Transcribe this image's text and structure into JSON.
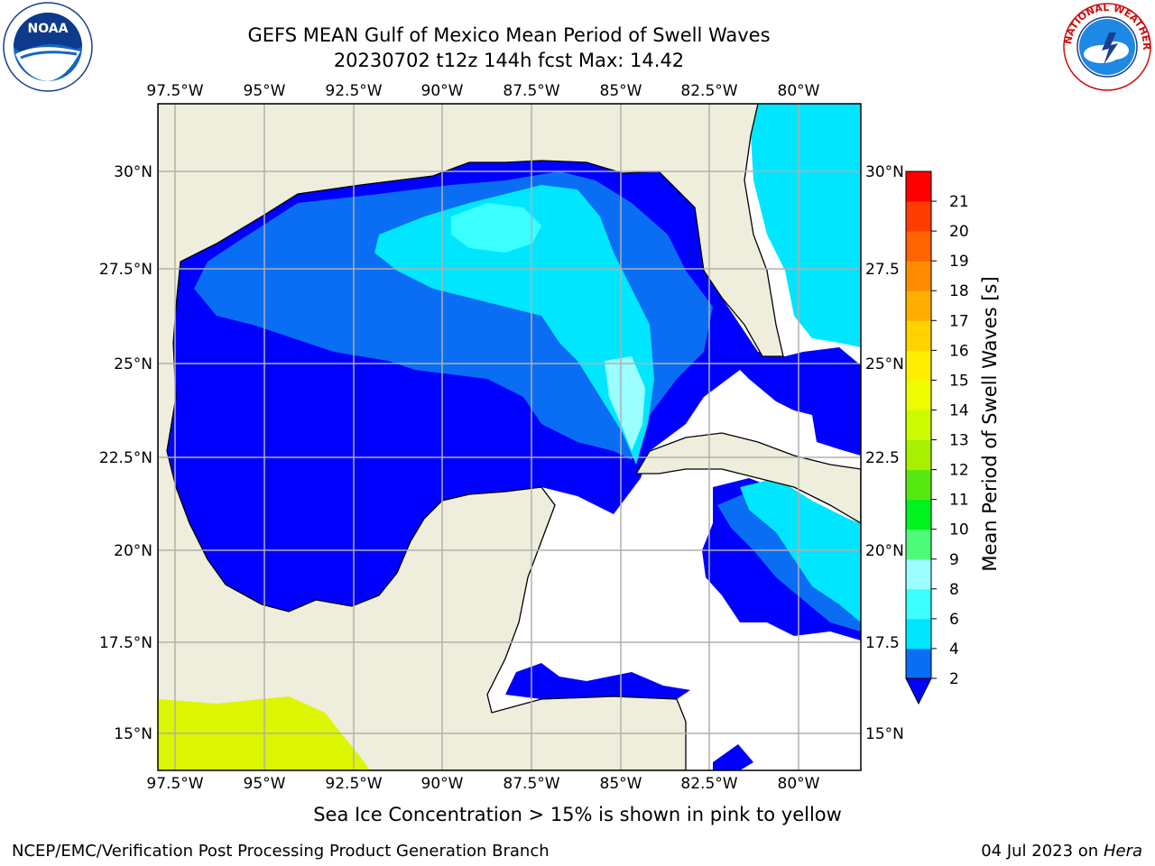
{
  "header": {
    "title_line1": "GEFS MEAN Gulf of Mexico Mean Period of Swell Waves",
    "title_line2": "20230702 t12z 144h fcst   Max: 14.42"
  },
  "logos": {
    "left": {
      "name": "noaa-logo",
      "text": "NOAA",
      "ring_text": "NATIONAL OCEANIC AND ATMOSPHERIC ADMINISTRATION · U.S. DEPARTMENT OF COMMERCE"
    },
    "right": {
      "name": "nws-logo",
      "ring_text": "NATIONAL WEATHER SERVICE"
    }
  },
  "map": {
    "lon_labels": [
      "97.5°W",
      "95°W",
      "92.5°W",
      "90°W",
      "87.5°W",
      "85°W",
      "82.5°W",
      "80°W"
    ],
    "lat_labels_left": [
      "30°N",
      "27.5°N",
      "25°N",
      "22.5°N",
      "20°N",
      "17.5°N",
      "15°N"
    ],
    "lat_labels_right": [
      "30°N",
      "27.5",
      "25°N",
      "22.5",
      "20°N",
      "17.5",
      "15°N"
    ],
    "colors": {
      "land": "#efeedc",
      "ocean_nodata": "#ffffff",
      "grid": "#b0b0b0"
    }
  },
  "colorbar": {
    "label": "Mean Period of Swell Waves [s]",
    "ticks": [
      "2",
      "4",
      "6",
      "8",
      "9",
      "10",
      "11",
      "12",
      "13",
      "14",
      "15",
      "16",
      "17",
      "18",
      "19",
      "20",
      "21"
    ],
    "colors": [
      "#0a6ef5",
      "#00e6ff",
      "#3cffff",
      "#9bffff",
      "#4efa7a",
      "#00f21f",
      "#57e812",
      "#a8f000",
      "#ccfa00",
      "#eefc00",
      "#ffee00",
      "#ffd200",
      "#ffae00",
      "#ff8c00",
      "#ff6400",
      "#ff3c00",
      "#ff0000"
    ],
    "extend_color": "#0000ff"
  },
  "note": "Sea Ice Concentration > 15% is shown in pink to yellow",
  "footer": {
    "left": "NCEP/EMC/Verification Post Processing Product Generation Branch",
    "right_date": "04 Jul 2023 on ",
    "right_host": "Hera"
  }
}
